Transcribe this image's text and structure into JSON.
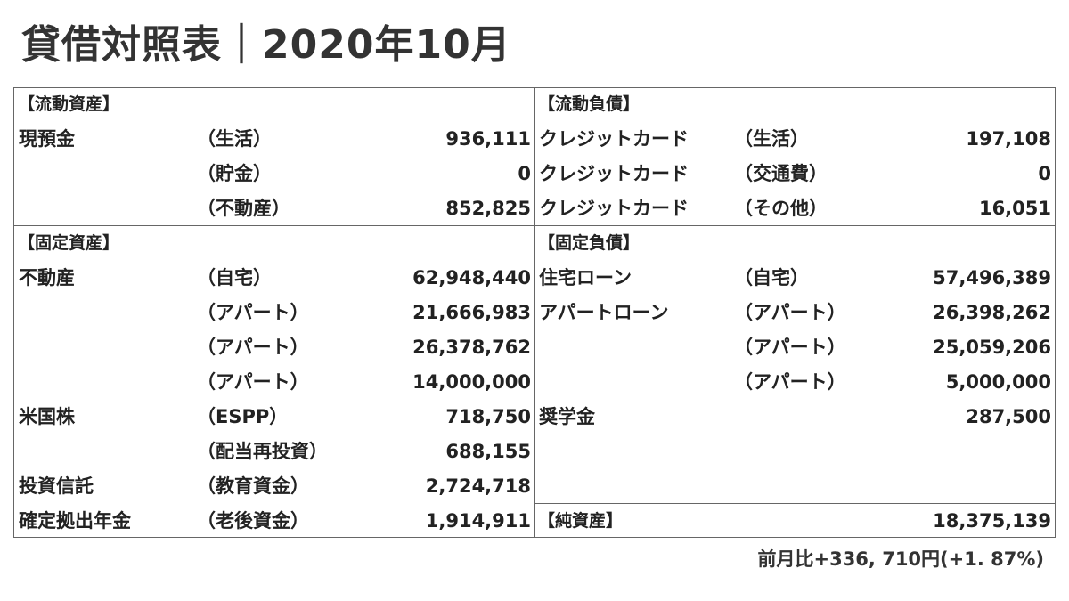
{
  "title": "貸借対照表｜2020年10月",
  "current_assets": {
    "heading": "【流動資産】",
    "rows": [
      {
        "item": "現預金",
        "sub": "（生活）",
        "value": "936,111"
      },
      {
        "item": "",
        "sub": "（貯金）",
        "value": "0"
      },
      {
        "item": "",
        "sub": "（不動産）",
        "value": "852,825"
      }
    ]
  },
  "current_liabilities": {
    "heading": "【流動負債】",
    "rows": [
      {
        "item": "クレジットカード",
        "sub": "（生活）",
        "value": "197,108"
      },
      {
        "item": "クレジットカード",
        "sub": "（交通費）",
        "value": "0"
      },
      {
        "item": "クレジットカード",
        "sub": "（その他）",
        "value": "16,051"
      }
    ]
  },
  "fixed_assets": {
    "heading": "【固定資産】",
    "rows": [
      {
        "item": "不動産",
        "sub": "（自宅）",
        "value": "62,948,440"
      },
      {
        "item": "",
        "sub": "（アパート）",
        "value": "21,666,983"
      },
      {
        "item": "",
        "sub": "（アパート）",
        "value": "26,378,762"
      },
      {
        "item": "",
        "sub": "（アパート）",
        "value": "14,000,000"
      },
      {
        "item": "米国株",
        "sub": "（ESPP）",
        "value": "718,750"
      },
      {
        "item": "",
        "sub": "（配当再投資）",
        "value": "688,155"
      },
      {
        "item": "投資信託",
        "sub": "（教育資金）",
        "value": "2,724,718"
      },
      {
        "item": "確定拠出年金",
        "sub": "（老後資金）",
        "value": "1,914,911"
      }
    ]
  },
  "fixed_liabilities": {
    "heading": "【固定負債】",
    "rows": [
      {
        "item": "住宅ローン",
        "sub": "（自宅）",
        "value": "57,496,389"
      },
      {
        "item": "アパートローン",
        "sub": "（アパート）",
        "value": "26,398,262"
      },
      {
        "item": "",
        "sub": "（アパート）",
        "value": "25,059,206"
      },
      {
        "item": "",
        "sub": "（アパート）",
        "value": "5,000,000"
      },
      {
        "item": "奨学金",
        "sub": "",
        "value": "287,500"
      }
    ]
  },
  "net_assets": {
    "label": "【純資産】",
    "value": "18,375,139"
  },
  "footnote": "前月比+336, 710円(+1. 87%)",
  "colors": {
    "text": "#222222",
    "title": "#333333",
    "border": "#666666",
    "background": "#ffffff"
  }
}
